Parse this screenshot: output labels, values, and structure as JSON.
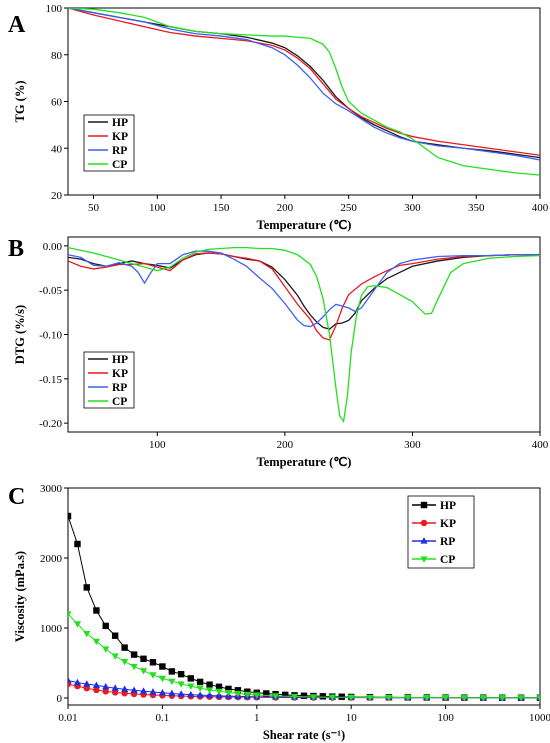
{
  "chart_data": [
    {
      "panel": "A",
      "type": "line",
      "xlabel": "Temperature (℃)",
      "ylabel": "TG (%)",
      "xlim": [
        30,
        400
      ],
      "ylim": [
        20,
        100
      ],
      "xticks": [
        50,
        100,
        150,
        200,
        250,
        300,
        350,
        400
      ],
      "yticks": [
        20,
        40,
        60,
        80,
        100
      ],
      "legend_position": "bottom-left",
      "series": [
        {
          "name": "HP",
          "color": "#1a1a1a",
          "x": [
            30,
            50,
            70,
            90,
            110,
            130,
            150,
            170,
            190,
            200,
            210,
            220,
            230,
            240,
            250,
            260,
            270,
            280,
            290,
            300,
            320,
            340,
            360,
            380,
            400
          ],
          "y": [
            100,
            98,
            96,
            94,
            92,
            90,
            89,
            87.5,
            85,
            83,
            79.5,
            75,
            69,
            62,
            57,
            53,
            50,
            47.5,
            45,
            43,
            41.5,
            40,
            39,
            37.5,
            36
          ]
        },
        {
          "name": "KP",
          "color": "#e8191f",
          "x": [
            30,
            50,
            70,
            90,
            110,
            130,
            150,
            170,
            190,
            200,
            210,
            220,
            230,
            240,
            250,
            260,
            270,
            280,
            290,
            300,
            320,
            340,
            360,
            380,
            400
          ],
          "y": [
            100,
            97,
            94.5,
            92,
            89.5,
            88,
            87,
            86,
            84,
            82,
            78.5,
            74,
            67.5,
            61,
            57,
            53.5,
            51,
            48.5,
            46.5,
            45,
            43,
            41.5,
            40,
            38.5,
            37
          ]
        },
        {
          "name": "RP",
          "color": "#3f5ff2",
          "x": [
            30,
            50,
            70,
            90,
            110,
            130,
            150,
            170,
            190,
            200,
            210,
            220,
            230,
            240,
            250,
            260,
            270,
            280,
            290,
            300,
            320,
            340,
            360,
            380,
            400
          ],
          "y": [
            100,
            98,
            96,
            94,
            91,
            89,
            88,
            86.5,
            83,
            80,
            75.5,
            70,
            63.5,
            59,
            56,
            52.5,
            49,
            46.5,
            44.5,
            43,
            41,
            40,
            38.5,
            37,
            35
          ]
        },
        {
          "name": "CP",
          "color": "#22e01e",
          "x": [
            30,
            50,
            70,
            90,
            110,
            130,
            150,
            170,
            190,
            200,
            210,
            220,
            230,
            235,
            240,
            245,
            250,
            260,
            270,
            280,
            290,
            300,
            310,
            320,
            340,
            360,
            380,
            400
          ],
          "y": [
            100,
            99.5,
            98,
            96,
            92,
            90,
            89,
            88.5,
            88,
            88,
            87.5,
            87,
            84.5,
            81,
            74,
            66,
            60,
            55,
            52,
            49,
            47,
            44,
            40,
            36,
            32.5,
            31,
            29.5,
            28.5
          ]
        }
      ]
    },
    {
      "panel": "B",
      "type": "line",
      "xlabel": "Temperature (℃)",
      "ylabel": "DTG (%/s)",
      "xlim": [
        30,
        400
      ],
      "ylim": [
        -0.21,
        0.01
      ],
      "xticks": [
        100,
        200,
        300,
        400
      ],
      "yticks": [
        0.0,
        -0.05,
        -0.1,
        -0.15,
        -0.2
      ],
      "ytick_labels": [
        "0.00",
        "-0.05",
        "-0.10",
        "-0.15",
        "-0.20"
      ],
      "legend_position": "middle-left",
      "series": [
        {
          "name": "HP",
          "color": "#1a1a1a",
          "x": [
            30,
            40,
            50,
            60,
            70,
            80,
            90,
            100,
            110,
            120,
            130,
            140,
            150,
            160,
            170,
            180,
            190,
            200,
            210,
            215,
            220,
            225,
            230,
            235,
            240,
            245,
            250,
            255,
            260,
            270,
            280,
            290,
            300,
            320,
            340,
            360,
            380,
            400
          ],
          "y": [
            -0.013,
            -0.015,
            -0.02,
            -0.023,
            -0.02,
            -0.017,
            -0.02,
            -0.022,
            -0.025,
            -0.016,
            -0.01,
            -0.008,
            -0.009,
            -0.012,
            -0.015,
            -0.017,
            -0.024,
            -0.038,
            -0.056,
            -0.068,
            -0.078,
            -0.086,
            -0.092,
            -0.094,
            -0.088,
            -0.087,
            -0.084,
            -0.076,
            -0.062,
            -0.048,
            -0.037,
            -0.03,
            -0.023,
            -0.017,
            -0.013,
            -0.011,
            -0.01,
            -0.01
          ]
        },
        {
          "name": "KP",
          "color": "#e8191f",
          "x": [
            30,
            40,
            50,
            60,
            70,
            80,
            90,
            100,
            110,
            120,
            130,
            140,
            150,
            160,
            170,
            180,
            190,
            200,
            210,
            220,
            225,
            230,
            235,
            240,
            245,
            250,
            260,
            270,
            280,
            290,
            300,
            320,
            340,
            360,
            380,
            400
          ],
          "y": [
            -0.017,
            -0.023,
            -0.026,
            -0.024,
            -0.021,
            -0.021,
            -0.02,
            -0.024,
            -0.028,
            -0.016,
            -0.009,
            -0.008,
            -0.009,
            -0.012,
            -0.014,
            -0.017,
            -0.026,
            -0.046,
            -0.066,
            -0.083,
            -0.096,
            -0.104,
            -0.106,
            -0.09,
            -0.07,
            -0.055,
            -0.043,
            -0.035,
            -0.028,
            -0.022,
            -0.02,
            -0.015,
            -0.012,
            -0.011,
            -0.01,
            -0.01
          ]
        },
        {
          "name": "RP",
          "color": "#3f5ff2",
          "x": [
            30,
            40,
            50,
            60,
            70,
            80,
            85,
            90,
            95,
            100,
            110,
            120,
            130,
            140,
            150,
            160,
            170,
            180,
            190,
            200,
            210,
            215,
            220,
            225,
            230,
            235,
            240,
            250,
            255,
            260,
            270,
            280,
            290,
            300,
            320,
            340,
            360,
            380,
            400
          ],
          "y": [
            -0.01,
            -0.013,
            -0.022,
            -0.023,
            -0.019,
            -0.023,
            -0.03,
            -0.042,
            -0.03,
            -0.02,
            -0.02,
            -0.01,
            -0.006,
            -0.006,
            -0.008,
            -0.015,
            -0.023,
            -0.036,
            -0.048,
            -0.065,
            -0.084,
            -0.09,
            -0.091,
            -0.087,
            -0.08,
            -0.072,
            -0.066,
            -0.07,
            -0.074,
            -0.07,
            -0.05,
            -0.03,
            -0.02,
            -0.016,
            -0.012,
            -0.011,
            -0.011,
            -0.01,
            -0.01
          ]
        },
        {
          "name": "CP",
          "color": "#22e01e",
          "x": [
            30,
            50,
            70,
            90,
            100,
            110,
            120,
            130,
            140,
            150,
            160,
            170,
            180,
            190,
            200,
            210,
            220,
            225,
            230,
            235,
            240,
            243,
            246,
            249,
            252,
            256,
            260,
            265,
            270,
            280,
            290,
            300,
            305,
            310,
            315,
            320,
            330,
            340,
            360,
            380,
            400
          ],
          "y": [
            -0.002,
            -0.008,
            -0.016,
            -0.024,
            -0.028,
            -0.024,
            -0.014,
            -0.007,
            -0.004,
            -0.003,
            -0.002,
            -0.002,
            -0.003,
            -0.003,
            -0.005,
            -0.01,
            -0.021,
            -0.035,
            -0.06,
            -0.1,
            -0.16,
            -0.192,
            -0.198,
            -0.17,
            -0.12,
            -0.08,
            -0.056,
            -0.046,
            -0.045,
            -0.047,
            -0.055,
            -0.063,
            -0.07,
            -0.077,
            -0.076,
            -0.06,
            -0.03,
            -0.02,
            -0.014,
            -0.012,
            -0.011
          ]
        }
      ]
    },
    {
      "panel": "C",
      "type": "scatter",
      "xlabel": "Shear rate (s⁻¹)",
      "ylabel": "Viscosity (mPa.s)",
      "xscale": "log",
      "xlim": [
        0.01,
        1000
      ],
      "ylim": [
        -100,
        3000
      ],
      "xticks": [
        0.01,
        0.1,
        1,
        10,
        100,
        1000
      ],
      "xtick_labels": [
        "0.01",
        "0.1",
        "1",
        "10",
        "100",
        "1000"
      ],
      "yticks": [
        0,
        1000,
        2000,
        3000
      ],
      "legend_position": "top-right",
      "series": [
        {
          "name": "HP",
          "color": "#000000",
          "marker": "square",
          "x": [
            0.01,
            0.0126,
            0.0158,
            0.02,
            0.0251,
            0.0316,
            0.0398,
            0.0501,
            0.0631,
            0.0794,
            0.1,
            0.126,
            0.158,
            0.2,
            0.251,
            0.316,
            0.398,
            0.501,
            0.631,
            0.794,
            1,
            1.26,
            1.58,
            2,
            2.51,
            3.16,
            3.98,
            5.01,
            6.31,
            7.94,
            10,
            15.8,
            25.1,
            39.8,
            63.1,
            100,
            158,
            251,
            398,
            631,
            1000
          ],
          "y": [
            2600,
            2200,
            1580,
            1250,
            1030,
            890,
            720,
            620,
            560,
            510,
            450,
            380,
            340,
            280,
            230,
            190,
            160,
            130,
            110,
            90,
            75,
            65,
            55,
            45,
            38,
            32,
            28,
            24,
            20,
            18,
            15,
            12,
            10,
            8,
            7,
            6,
            5,
            5,
            4,
            4,
            4
          ]
        },
        {
          "name": "KP",
          "color": "#e8191f",
          "marker": "circle",
          "x": [
            0.01,
            0.0126,
            0.0158,
            0.02,
            0.0251,
            0.0316,
            0.0398,
            0.0501,
            0.0631,
            0.0794,
            0.1,
            0.126,
            0.158,
            0.2,
            0.251,
            0.316,
            0.398,
            0.501,
            0.631,
            0.794,
            1,
            1.58,
            2.51,
            3.98,
            6.31,
            10,
            15.8,
            25.1,
            39.8,
            63.1,
            100,
            158,
            251,
            398,
            631,
            1000
          ],
          "y": [
            200,
            170,
            140,
            115,
            95,
            80,
            68,
            58,
            50,
            43,
            37,
            32,
            28,
            24,
            21,
            18,
            16,
            14,
            12,
            11,
            10,
            8,
            7,
            6,
            5,
            5,
            4,
            4,
            4,
            3,
            3,
            3,
            3,
            3,
            3,
            3
          ]
        },
        {
          "name": "RP",
          "color": "#1d2fe0",
          "marker": "triangle-up",
          "x": [
            0.01,
            0.0126,
            0.0158,
            0.02,
            0.0251,
            0.0316,
            0.0398,
            0.0501,
            0.0631,
            0.0794,
            0.1,
            0.126,
            0.158,
            0.2,
            0.251,
            0.316,
            0.398,
            0.501,
            0.631,
            0.794,
            1,
            1.58,
            2.51,
            3.98,
            6.31,
            10,
            15.8,
            25.1,
            39.8,
            63.1,
            100,
            158,
            251,
            398,
            631,
            1000
          ],
          "y": [
            250,
            220,
            200,
            180,
            160,
            140,
            125,
            110,
            98,
            86,
            75,
            65,
            56,
            48,
            41,
            35,
            30,
            26,
            23,
            20,
            18,
            15,
            12,
            10,
            9,
            8,
            7,
            6,
            6,
            5,
            5,
            5,
            4,
            4,
            4,
            4
          ]
        },
        {
          "name": "CP",
          "color": "#22e01e",
          "marker": "triangle-down",
          "x": [
            0.01,
            0.0126,
            0.0158,
            0.02,
            0.0251,
            0.0316,
            0.0398,
            0.0501,
            0.0631,
            0.0794,
            0.1,
            0.126,
            0.158,
            0.2,
            0.251,
            0.316,
            0.398,
            0.501,
            0.631,
            0.794,
            1,
            1.58,
            2.51,
            3.98,
            6.31,
            10,
            15.8,
            25.1,
            39.8,
            63.1,
            100,
            158,
            251,
            398,
            631,
            1000
          ],
          "y": [
            1200,
            1060,
            920,
            810,
            700,
            600,
            520,
            450,
            390,
            330,
            280,
            240,
            200,
            170,
            140,
            115,
            95,
            78,
            64,
            52,
            43,
            30,
            22,
            16,
            12,
            10,
            8,
            7,
            6,
            5,
            5,
            4,
            4,
            4,
            4,
            4
          ]
        }
      ]
    }
  ]
}
